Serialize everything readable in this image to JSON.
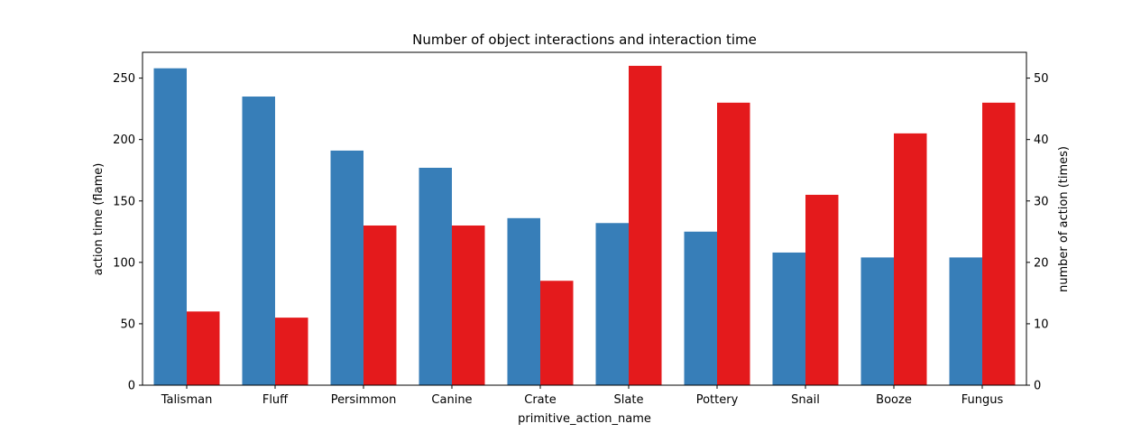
{
  "chart_data": {
    "type": "bar",
    "title": "Number of object interactions and interaction time",
    "xlabel": "primitive_action_name",
    "ylabel_left": "action time (flame)",
    "ylabel_right": "number of action (times)",
    "categories": [
      "Talisman",
      "Fluff",
      "Persimmon",
      "Canine",
      "Crate",
      "Slate",
      "Pottery",
      "Snail",
      "Booze",
      "Fungus"
    ],
    "series": [
      {
        "axis": "left",
        "color": "#377eb8",
        "values": [
          258,
          235,
          191,
          177,
          136,
          132,
          125,
          108,
          104,
          104
        ]
      },
      {
        "axis": "right",
        "color": "#e41a1c",
        "values": [
          12,
          11,
          26,
          26,
          17,
          52,
          46,
          31,
          41,
          46
        ]
      }
    ],
    "ylim_left": [
      0,
      271
    ],
    "ylim_right": [
      0,
      54.2
    ],
    "yticks_left": [
      0,
      50,
      100,
      150,
      200,
      250
    ],
    "yticks_right": [
      0,
      10,
      20,
      30,
      40,
      50
    ],
    "grid": false,
    "legend": "none"
  }
}
